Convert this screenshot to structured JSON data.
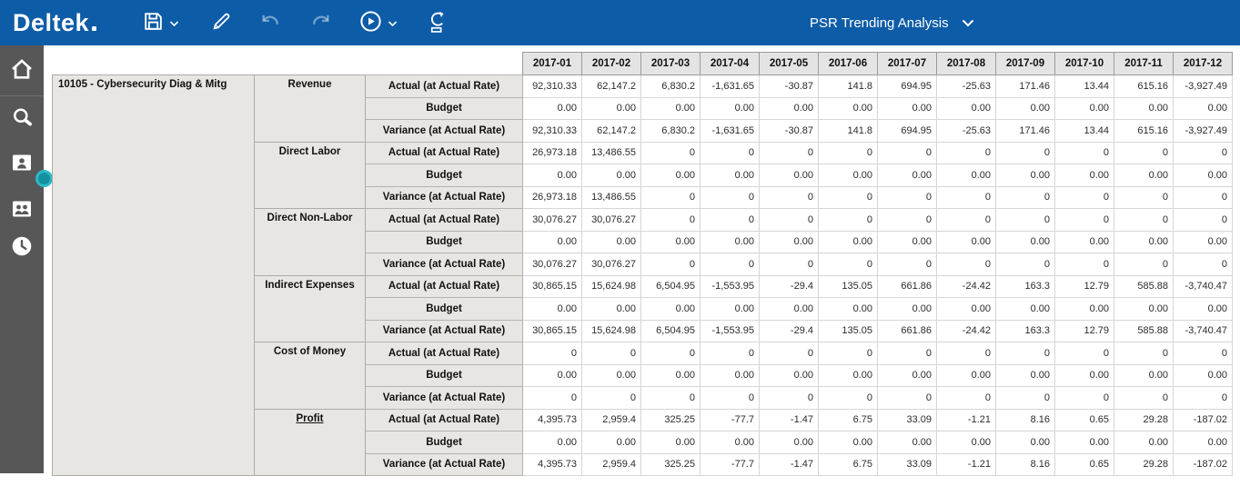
{
  "topbar": {
    "brand": "Deltek",
    "title": "PSR Trending Analysis",
    "icons": [
      "save",
      "edit",
      "undo",
      "redo",
      "run",
      "export"
    ]
  },
  "sidebar": {
    "icons": [
      "home",
      "search",
      "employee",
      "people",
      "clock"
    ]
  },
  "colors": {
    "topbar_blue": "#0d5ca8",
    "sidebar_gray": "#575757",
    "accent_teal": "#2db8c8",
    "header_bg": "#e4e4e4",
    "label_bg": "#e8e6e3"
  },
  "table": {
    "project": "10105 - Cybersecurity Diag & Mitg",
    "months": [
      "2017-01",
      "2017-02",
      "2017-03",
      "2017-04",
      "2017-05",
      "2017-06",
      "2017-07",
      "2017-08",
      "2017-09",
      "2017-10",
      "2017-11",
      "2017-12"
    ],
    "row_types": [
      "Actual (at Actual Rate)",
      "Budget",
      "Variance (at Actual Rate)"
    ],
    "groups": [
      {
        "category": "Revenue",
        "underline": false,
        "actual": [
          "92,310.33",
          "62,147.2",
          "6,830.2",
          "-1,631.65",
          "-30.87",
          "141.8",
          "694.95",
          "-25.63",
          "171.46",
          "13.44",
          "615.16",
          "-3,927.49"
        ],
        "budget": [
          "0.00",
          "0.00",
          "0.00",
          "0.00",
          "0.00",
          "0.00",
          "0.00",
          "0.00",
          "0.00",
          "0.00",
          "0.00",
          "0.00"
        ],
        "variance": [
          "92,310.33",
          "62,147.2",
          "6,830.2",
          "-1,631.65",
          "-30.87",
          "141.8",
          "694.95",
          "-25.63",
          "171.46",
          "13.44",
          "615.16",
          "-3,927.49"
        ]
      },
      {
        "category": "Direct Labor",
        "underline": false,
        "actual": [
          "26,973.18",
          "13,486.55",
          "0",
          "0",
          "0",
          "0",
          "0",
          "0",
          "0",
          "0",
          "0",
          "0"
        ],
        "budget": [
          "0.00",
          "0.00",
          "0.00",
          "0.00",
          "0.00",
          "0.00",
          "0.00",
          "0.00",
          "0.00",
          "0.00",
          "0.00",
          "0.00"
        ],
        "variance": [
          "26,973.18",
          "13,486.55",
          "0",
          "0",
          "0",
          "0",
          "0",
          "0",
          "0",
          "0",
          "0",
          "0"
        ]
      },
      {
        "category": "Direct Non-Labor",
        "underline": false,
        "actual": [
          "30,076.27",
          "30,076.27",
          "0",
          "0",
          "0",
          "0",
          "0",
          "0",
          "0",
          "0",
          "0",
          "0"
        ],
        "budget": [
          "0.00",
          "0.00",
          "0.00",
          "0.00",
          "0.00",
          "0.00",
          "0.00",
          "0.00",
          "0.00",
          "0.00",
          "0.00",
          "0.00"
        ],
        "variance": [
          "30,076.27",
          "30,076.27",
          "0",
          "0",
          "0",
          "0",
          "0",
          "0",
          "0",
          "0",
          "0",
          "0"
        ]
      },
      {
        "category": "Indirect Expenses",
        "underline": false,
        "actual": [
          "30,865.15",
          "15,624.98",
          "6,504.95",
          "-1,553.95",
          "-29.4",
          "135.05",
          "661.86",
          "-24.42",
          "163.3",
          "12.79",
          "585.88",
          "-3,740.47"
        ],
        "budget": [
          "0.00",
          "0.00",
          "0.00",
          "0.00",
          "0.00",
          "0.00",
          "0.00",
          "0.00",
          "0.00",
          "0.00",
          "0.00",
          "0.00"
        ],
        "variance": [
          "30,865.15",
          "15,624.98",
          "6,504.95",
          "-1,553.95",
          "-29.4",
          "135.05",
          "661.86",
          "-24.42",
          "163.3",
          "12.79",
          "585.88",
          "-3,740.47"
        ]
      },
      {
        "category": "Cost of Money",
        "underline": false,
        "actual": [
          "0",
          "0",
          "0",
          "0",
          "0",
          "0",
          "0",
          "0",
          "0",
          "0",
          "0",
          "0"
        ],
        "budget": [
          "0.00",
          "0.00",
          "0.00",
          "0.00",
          "0.00",
          "0.00",
          "0.00",
          "0.00",
          "0.00",
          "0.00",
          "0.00",
          "0.00"
        ],
        "variance": [
          "0",
          "0",
          "0",
          "0",
          "0",
          "0",
          "0",
          "0",
          "0",
          "0",
          "0",
          "0"
        ]
      },
      {
        "category": "Profit",
        "underline": true,
        "actual": [
          "4,395.73",
          "2,959.4",
          "325.25",
          "-77.7",
          "-1.47",
          "6.75",
          "33.09",
          "-1.21",
          "8.16",
          "0.65",
          "29.28",
          "-187.02"
        ],
        "budget": [
          "0.00",
          "0.00",
          "0.00",
          "0.00",
          "0.00",
          "0.00",
          "0.00",
          "0.00",
          "0.00",
          "0.00",
          "0.00",
          "0.00"
        ],
        "variance": [
          "4,395.73",
          "2,959.4",
          "325.25",
          "-77.7",
          "-1.47",
          "6.75",
          "33.09",
          "-1.21",
          "8.16",
          "0.65",
          "29.28",
          "-187.02"
        ]
      }
    ]
  }
}
